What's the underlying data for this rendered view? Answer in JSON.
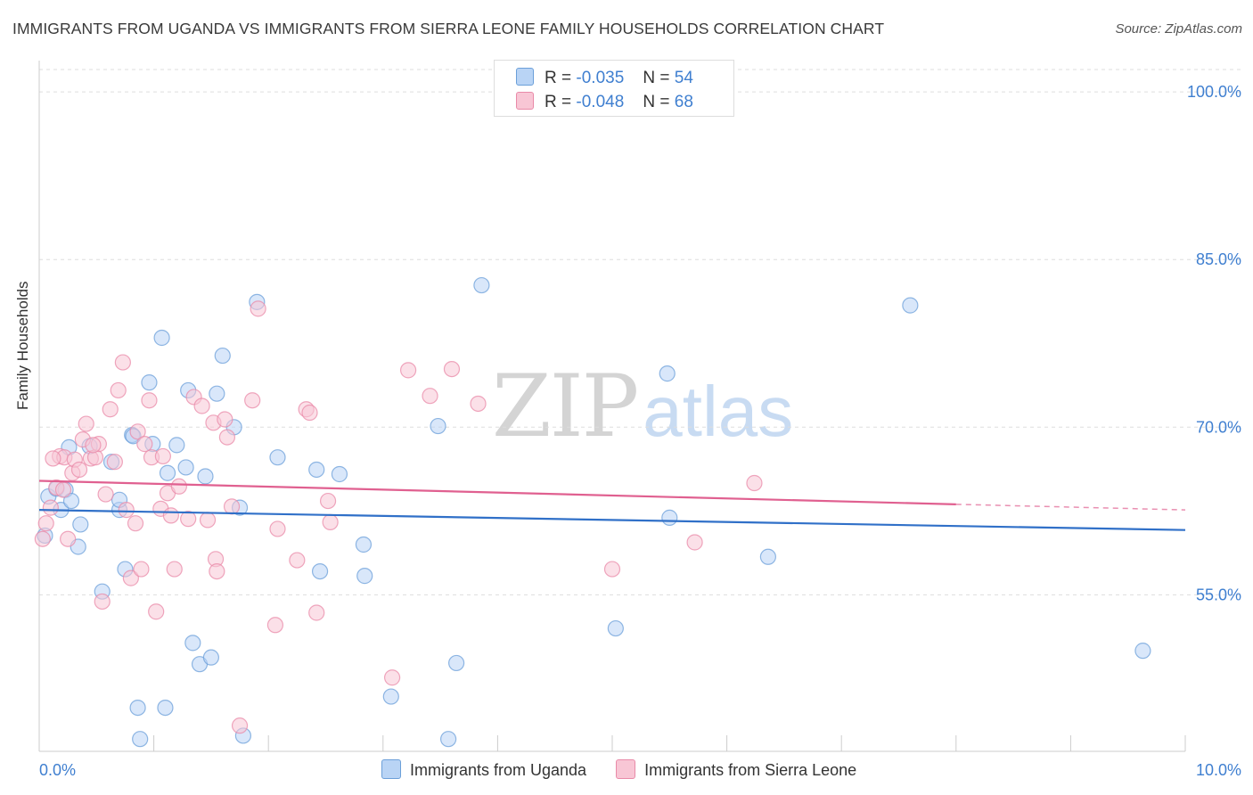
{
  "header": {
    "title": "IMMIGRANTS FROM UGANDA VS IMMIGRANTS FROM SIERRA LEONE FAMILY HOUSEHOLDS CORRELATION CHART",
    "source": "Source: ZipAtlas.com"
  },
  "watermark": {
    "zip": "ZIP",
    "atlas": "atlas"
  },
  "legend": {
    "uganda": {
      "r_label": "R =",
      "r_value": "-0.035",
      "n_label": "N =",
      "n_value": "54"
    },
    "sierra": {
      "r_label": "R =",
      "r_value": "-0.048",
      "n_label": "N =",
      "n_value": "68"
    }
  },
  "bottom_legend": {
    "uganda": "Immigrants from Uganda",
    "sierra": "Immigrants from Sierra Leone"
  },
  "colors": {
    "uganda_fill": "#b9d4f5",
    "uganda_stroke": "#6b9fd9",
    "uganda_line": "#3070c8",
    "sierra_fill": "#f8c6d5",
    "sierra_stroke": "#e98aa8",
    "sierra_line": "#e06090",
    "tick": "#3f7fd0",
    "grid": "#dddddd"
  },
  "chart_data": {
    "type": "scatter",
    "title": "IMMIGRANTS FROM UGANDA VS IMMIGRANTS FROM SIERRA LEONE FAMILY HOUSEHOLDS CORRELATION CHART",
    "xlabel": "",
    "ylabel": "Family Households",
    "xlim": [
      0,
      10
    ],
    "ylim": [
      41,
      102
    ],
    "x_tick_labels": [
      {
        "value": 0,
        "label": "0.0%"
      },
      {
        "value": 10,
        "label": "10.0%"
      }
    ],
    "y_ticks": [
      {
        "value": 55,
        "label": "55.0%"
      },
      {
        "value": 70,
        "label": "70.0%"
      },
      {
        "value": 85,
        "label": "85.0%"
      },
      {
        "value": 100,
        "label": "100.0%"
      }
    ],
    "grid": true,
    "series": [
      {
        "name": "Immigrants from Uganda",
        "r": -0.035,
        "n": 54,
        "trend": {
          "x": [
            0.0,
            10.0
          ],
          "y": [
            62.6,
            60.8
          ]
        },
        "points": [
          [
            0.05,
            60.3
          ],
          [
            0.08,
            63.8
          ],
          [
            0.15,
            64.5
          ],
          [
            0.19,
            62.6
          ],
          [
            0.23,
            64.4
          ],
          [
            0.26,
            68.2
          ],
          [
            0.28,
            63.4
          ],
          [
            0.34,
            59.3
          ],
          [
            0.36,
            61.3
          ],
          [
            0.44,
            68.3
          ],
          [
            0.55,
            55.3
          ],
          [
            0.63,
            66.9
          ],
          [
            0.7,
            62.6
          ],
          [
            0.75,
            57.3
          ],
          [
            0.81,
            69.3
          ],
          [
            0.86,
            44.9
          ],
          [
            0.88,
            42.1
          ],
          [
            0.96,
            74.0
          ],
          [
            0.99,
            68.5
          ],
          [
            1.07,
            78.0
          ],
          [
            1.1,
            44.9
          ],
          [
            1.12,
            65.9
          ],
          [
            1.2,
            68.4
          ],
          [
            1.28,
            66.4
          ],
          [
            1.3,
            73.3
          ],
          [
            1.34,
            50.7
          ],
          [
            1.4,
            48.8
          ],
          [
            1.45,
            65.6
          ],
          [
            1.5,
            49.4
          ],
          [
            1.55,
            73.0
          ],
          [
            1.6,
            76.4
          ],
          [
            1.7,
            70.0
          ],
          [
            1.75,
            62.8
          ],
          [
            1.78,
            42.4
          ],
          [
            1.9,
            81.2
          ],
          [
            2.08,
            67.3
          ],
          [
            2.42,
            66.2
          ],
          [
            2.45,
            57.1
          ],
          [
            2.62,
            65.8
          ],
          [
            2.83,
            59.5
          ],
          [
            2.84,
            56.7
          ],
          [
            3.07,
            45.9
          ],
          [
            3.48,
            70.1
          ],
          [
            3.57,
            42.1
          ],
          [
            3.64,
            48.9
          ],
          [
            3.86,
            82.7
          ],
          [
            5.03,
            52.0
          ],
          [
            5.48,
            74.8
          ],
          [
            5.5,
            61.9
          ],
          [
            6.36,
            58.4
          ],
          [
            7.6,
            80.9
          ],
          [
            9.63,
            50.0
          ],
          [
            0.82,
            69.2
          ],
          [
            0.7,
            63.5
          ]
        ]
      },
      {
        "name": "Immigrants from Sierra Leone",
        "r": -0.048,
        "n": 68,
        "trend": {
          "x": [
            0.0,
            8.0
          ],
          "y": [
            65.2,
            63.1
          ]
        },
        "trend_dashed": {
          "x": [
            8.0,
            10.0
          ],
          "y": [
            63.1,
            62.6
          ]
        },
        "points": [
          [
            0.03,
            60.0
          ],
          [
            0.06,
            61.4
          ],
          [
            0.1,
            62.8
          ],
          [
            0.15,
            64.6
          ],
          [
            0.18,
            67.4
          ],
          [
            0.22,
            67.3
          ],
          [
            0.25,
            60.0
          ],
          [
            0.29,
            65.9
          ],
          [
            0.31,
            67.1
          ],
          [
            0.35,
            66.2
          ],
          [
            0.38,
            68.9
          ],
          [
            0.41,
            70.3
          ],
          [
            0.45,
            67.2
          ],
          [
            0.49,
            67.3
          ],
          [
            0.52,
            68.5
          ],
          [
            0.55,
            54.4
          ],
          [
            0.58,
            64.0
          ],
          [
            0.62,
            71.6
          ],
          [
            0.66,
            66.9
          ],
          [
            0.69,
            73.3
          ],
          [
            0.73,
            75.8
          ],
          [
            0.76,
            62.6
          ],
          [
            0.8,
            56.5
          ],
          [
            0.84,
            61.4
          ],
          [
            0.86,
            69.6
          ],
          [
            0.89,
            57.3
          ],
          [
            0.92,
            68.5
          ],
          [
            0.96,
            72.4
          ],
          [
            0.98,
            67.3
          ],
          [
            1.02,
            53.5
          ],
          [
            1.06,
            62.7
          ],
          [
            1.08,
            67.4
          ],
          [
            1.12,
            64.1
          ],
          [
            1.15,
            62.1
          ],
          [
            1.18,
            57.3
          ],
          [
            1.22,
            64.7
          ],
          [
            1.3,
            61.8
          ],
          [
            1.35,
            72.7
          ],
          [
            1.42,
            71.9
          ],
          [
            1.47,
            61.7
          ],
          [
            1.52,
            70.4
          ],
          [
            1.54,
            58.2
          ],
          [
            1.55,
            57.1
          ],
          [
            1.62,
            70.7
          ],
          [
            1.64,
            69.1
          ],
          [
            1.68,
            62.9
          ],
          [
            1.75,
            43.3
          ],
          [
            1.86,
            72.4
          ],
          [
            1.91,
            80.6
          ],
          [
            2.06,
            52.3
          ],
          [
            2.08,
            60.9
          ],
          [
            2.25,
            58.1
          ],
          [
            2.33,
            71.6
          ],
          [
            2.36,
            71.3
          ],
          [
            2.42,
            53.4
          ],
          [
            2.52,
            63.4
          ],
          [
            2.54,
            61.5
          ],
          [
            3.08,
            47.6
          ],
          [
            3.22,
            75.1
          ],
          [
            3.41,
            72.8
          ],
          [
            3.6,
            75.2
          ],
          [
            3.83,
            72.1
          ],
          [
            5.0,
            57.3
          ],
          [
            5.72,
            59.7
          ],
          [
            6.24,
            65.0
          ],
          [
            0.47,
            68.4
          ],
          [
            0.12,
            67.2
          ],
          [
            0.21,
            64.4
          ]
        ]
      }
    ]
  }
}
